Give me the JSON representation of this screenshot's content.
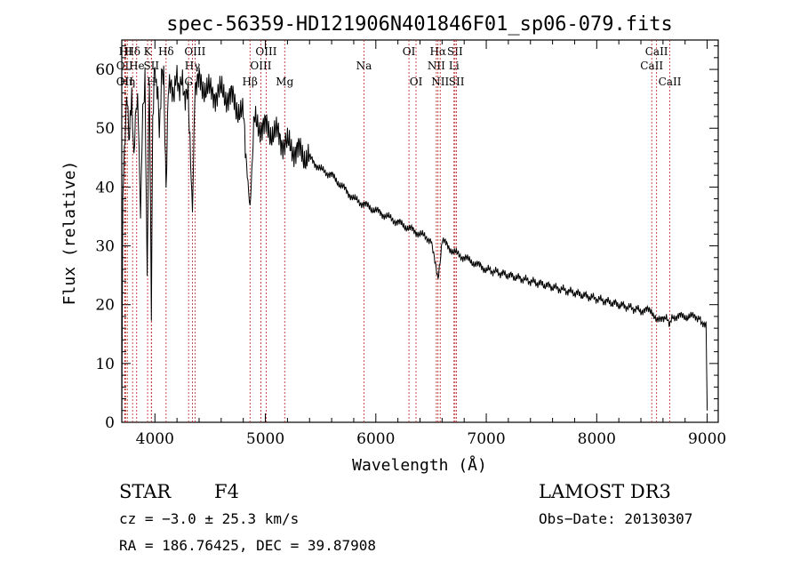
{
  "chart_data": {
    "type": "line",
    "title": "spec-56359-HD121906N401846F01_sp06-079.fits",
    "xlabel": "Wavelength (Å)",
    "ylabel": "Flux (relative)",
    "xlim": [
      3700,
      9100
    ],
    "ylim": [
      0,
      65
    ],
    "xticks": [
      4000,
      5000,
      6000,
      7000,
      8000,
      9000
    ],
    "yticks": [
      0,
      10,
      20,
      30,
      40,
      50,
      60
    ],
    "series": [
      {
        "name": "spectrum",
        "x": [
          3700,
          3710,
          3730,
          3750,
          3770,
          3790,
          3810,
          3830,
          3850,
          3870,
          3890,
          3910,
          3930,
          3950,
          3968,
          3980,
          4000,
          4020,
          4040,
          4060,
          4080,
          4101,
          4120,
          4150,
          4200,
          4250,
          4300,
          4340,
          4360,
          4400,
          4500,
          4600,
          4700,
          4800,
          4861,
          4900,
          5000,
          5100,
          5200,
          5300,
          5400,
          5500,
          5600,
          5700,
          5800,
          5900,
          6000,
          6100,
          6200,
          6300,
          6400,
          6500,
          6563,
          6600,
          6700,
          6800,
          6900,
          7000,
          7200,
          7400,
          7600,
          7800,
          8000,
          8200,
          8400,
          8500,
          8542,
          8600,
          8662,
          8700,
          8800,
          8900,
          8950,
          8990,
          9000
        ],
        "y": [
          0,
          38,
          50,
          55,
          48,
          56,
          45,
          55,
          52,
          35,
          54,
          57,
          25,
          58,
          18,
          52,
          60,
          57,
          50,
          58,
          60,
          40,
          57,
          56,
          58,
          57,
          55,
          36,
          55,
          58,
          56,
          56,
          55,
          52,
          36,
          51,
          50,
          49,
          47,
          46,
          45,
          43,
          42,
          40,
          38,
          37,
          36,
          35,
          34,
          33,
          32,
          31,
          24,
          31,
          29,
          28,
          27,
          26,
          25,
          24,
          23,
          22,
          21,
          20,
          19,
          19,
          17,
          18,
          17,
          18,
          18,
          18,
          17,
          17,
          2
        ]
      }
    ],
    "lines": [
      {
        "label": "HI",
        "wavelength": 3734,
        "row": 1
      },
      {
        "label": "OII",
        "wavelength": 3727,
        "row": 2
      },
      {
        "label": "OII",
        "wavelength": 3727,
        "row": 3
      },
      {
        "label": "Hδ",
        "wavelength": 3798,
        "row": 1
      },
      {
        "label": "He",
        "wavelength": 3835,
        "row": 2
      },
      {
        "label": "Hη",
        "wavelength": 3750,
        "row": 3
      },
      {
        "label": "K",
        "wavelength": 3934,
        "row": 1
      },
      {
        "label": "SII",
        "wavelength": 3968,
        "row": 2
      },
      {
        "label": "H",
        "wavelength": 3968,
        "row": 3
      },
      {
        "label": "Hδ",
        "wavelength": 4101,
        "row": 1
      },
      {
        "label": "OIII",
        "wavelength": 4363,
        "row": 1
      },
      {
        "label": "Hγ",
        "wavelength": 4340,
        "row": 2
      },
      {
        "label": "G",
        "wavelength": 4305,
        "row": 3
      },
      {
        "label": "OIII",
        "wavelength": 5007,
        "row": 1
      },
      {
        "label": "OIII",
        "wavelength": 4959,
        "row": 2
      },
      {
        "label": "Hβ",
        "wavelength": 4861,
        "row": 3
      },
      {
        "label": "Mg",
        "wavelength": 5175,
        "row": 3
      },
      {
        "label": "Na",
        "wavelength": 5893,
        "row": 2
      },
      {
        "label": "OI",
        "wavelength": 6300,
        "row": 1
      },
      {
        "label": "OI",
        "wavelength": 6364,
        "row": 3
      },
      {
        "label": "Hα",
        "wavelength": 6563,
        "row": 1
      },
      {
        "label": "NII",
        "wavelength": 6548,
        "row": 2
      },
      {
        "label": "NII",
        "wavelength": 6583,
        "row": 3
      },
      {
        "label": "SII",
        "wavelength": 6717,
        "row": 1
      },
      {
        "label": "Li",
        "wavelength": 6708,
        "row": 2
      },
      {
        "label": "SII",
        "wavelength": 6731,
        "row": 3
      },
      {
        "label": "CaII",
        "wavelength": 8542,
        "row": 1
      },
      {
        "label": "CaII",
        "wavelength": 8498,
        "row": 2
      },
      {
        "label": "CaII",
        "wavelength": 8662,
        "row": 3
      }
    ]
  },
  "info": {
    "class": "STAR",
    "subclass": "F4",
    "survey": "LAMOST DR3",
    "cz": "cz = −3.0 ± 25.3 km/s",
    "obs_date": "Obs−Date: 20130307",
    "radec": "RA = 186.76425, DEC =  39.87908"
  }
}
